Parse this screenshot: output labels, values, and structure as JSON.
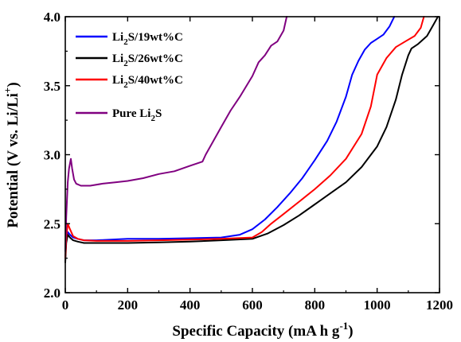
{
  "chart_data": {
    "type": "line",
    "xlabel": "Specific Capacity (mA h g-1)",
    "ylabel": "Potential (V vs. Li/Li+)",
    "xlim": [
      0,
      1200
    ],
    "ylim": [
      2.0,
      4.0
    ],
    "xticks": [
      "0",
      "200",
      "400",
      "600",
      "800",
      "1000",
      "1200"
    ],
    "yticks": [
      "2.0",
      "2.5",
      "3.0",
      "3.5",
      "4.0"
    ],
    "grid": false,
    "legend_position": "top-left",
    "legend_labels": [
      "Li2S/19wt%C",
      "Li2S/26wt%C",
      "Li2S/40wt%C",
      "Pure Li2S"
    ],
    "series": [
      {
        "name": "Li2S/19wt%C",
        "color": "#0000ff",
        "x": [
          0,
          3,
          8,
          15,
          25,
          40,
          60,
          100,
          200,
          300,
          400,
          500,
          560,
          600,
          640,
          680,
          720,
          760,
          800,
          840,
          870,
          900,
          920,
          940,
          960,
          980,
          1000,
          1020,
          1040,
          1055
        ],
        "y": [
          2.25,
          2.38,
          2.44,
          2.42,
          2.4,
          2.39,
          2.38,
          2.38,
          2.39,
          2.39,
          2.395,
          2.4,
          2.42,
          2.46,
          2.53,
          2.62,
          2.72,
          2.83,
          2.96,
          3.1,
          3.24,
          3.42,
          3.58,
          3.68,
          3.76,
          3.81,
          3.84,
          3.87,
          3.93,
          4.0
        ]
      },
      {
        "name": "Li2S/26wt%C",
        "color": "#000000",
        "x": [
          0,
          3,
          8,
          15,
          25,
          40,
          60,
          100,
          200,
          300,
          400,
          500,
          600,
          650,
          700,
          750,
          800,
          850,
          900,
          950,
          1000,
          1030,
          1060,
          1080,
          1100,
          1110,
          1130,
          1160,
          1180,
          1195
        ],
        "y": [
          2.22,
          2.36,
          2.42,
          2.4,
          2.38,
          2.37,
          2.36,
          2.36,
          2.36,
          2.365,
          2.37,
          2.38,
          2.39,
          2.43,
          2.49,
          2.56,
          2.64,
          2.72,
          2.8,
          2.91,
          3.06,
          3.2,
          3.4,
          3.58,
          3.72,
          3.77,
          3.8,
          3.86,
          3.94,
          4.0
        ]
      },
      {
        "name": "Li2S/40wt%C",
        "color": "#ff0000",
        "x": [
          0,
          3,
          8,
          15,
          25,
          40,
          60,
          100,
          200,
          300,
          400,
          500,
          600,
          630,
          660,
          700,
          750,
          800,
          850,
          900,
          950,
          980,
          1000,
          1030,
          1060,
          1090,
          1120,
          1140,
          1150
        ],
        "y": [
          2.25,
          2.4,
          2.5,
          2.46,
          2.41,
          2.39,
          2.38,
          2.375,
          2.375,
          2.38,
          2.385,
          2.39,
          2.4,
          2.44,
          2.5,
          2.57,
          2.66,
          2.75,
          2.85,
          2.97,
          3.15,
          3.35,
          3.58,
          3.7,
          3.78,
          3.82,
          3.86,
          3.92,
          4.0
        ]
      },
      {
        "name": "Pure Li2S",
        "color": "#800080",
        "x": [
          0,
          3,
          8,
          12,
          18,
          22,
          28,
          35,
          50,
          80,
          120,
          160,
          200,
          250,
          300,
          350,
          400,
          440,
          450,
          470,
          500,
          530,
          560,
          600,
          620,
          640,
          660,
          680,
          700,
          710
        ],
        "y": [
          2.3,
          2.55,
          2.8,
          2.9,
          2.97,
          2.9,
          2.82,
          2.79,
          2.775,
          2.775,
          2.79,
          2.8,
          2.81,
          2.83,
          2.86,
          2.88,
          2.92,
          2.95,
          3.0,
          3.08,
          3.2,
          3.32,
          3.42,
          3.57,
          3.67,
          3.72,
          3.79,
          3.82,
          3.9,
          4.0
        ]
      }
    ]
  }
}
